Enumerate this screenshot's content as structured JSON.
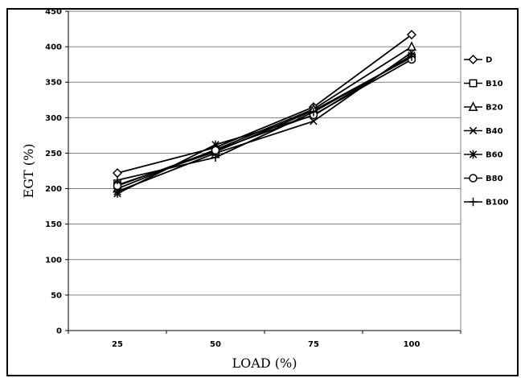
{
  "chart_data": {
    "type": "line",
    "title": "",
    "xlabel": "LOAD (%)",
    "ylabel": "EGT (%)",
    "categories": [
      "25",
      "50",
      "75",
      "100"
    ],
    "ylim": [
      0,
      450
    ],
    "yticks": [
      "0",
      "50",
      "100",
      "150",
      "200",
      "250",
      "300",
      "350",
      "400",
      "450"
    ],
    "grid": "horizontal",
    "legend_placement": "right",
    "line_color": "#000000",
    "series": [
      {
        "name": "D",
        "marker": "diamond",
        "values": [
          222,
          258,
          315,
          417
        ]
      },
      {
        "name": "B10",
        "marker": "square",
        "values": [
          205,
          252,
          310,
          385
        ]
      },
      {
        "name": "B20",
        "marker": "triangle",
        "values": [
          200,
          255,
          312,
          400
        ]
      },
      {
        "name": "B40",
        "marker": "x",
        "values": [
          196,
          250,
          295,
          392
        ]
      },
      {
        "name": "B60",
        "marker": "asterisk",
        "values": [
          193,
          262,
          303,
          388
        ]
      },
      {
        "name": "B80",
        "marker": "circle",
        "values": [
          204,
          254,
          304,
          382
        ]
      },
      {
        "name": "B100",
        "marker": "plus",
        "values": [
          212,
          244,
          308,
          386
        ]
      }
    ]
  }
}
